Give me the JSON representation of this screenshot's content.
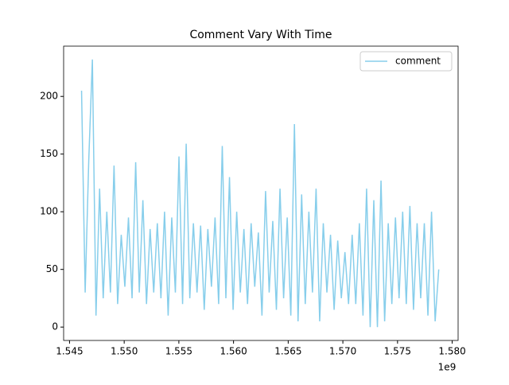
{
  "chart_data": {
    "type": "line",
    "title": "Comment Vary With Time",
    "x": [
      1546100000,
      1546430000,
      1546760000,
      1547090000,
      1547420000,
      1547750000,
      1548080000,
      1548410000,
      1548740000,
      1549070000,
      1549400000,
      1549730000,
      1550060000,
      1550390000,
      1550720000,
      1551050000,
      1551380000,
      1551710000,
      1552040000,
      1552370000,
      1552700000,
      1553030000,
      1553360000,
      1553690000,
      1554020000,
      1554350000,
      1554680000,
      1555010000,
      1555340000,
      1555670000,
      1556000000,
      1556330000,
      1556660000,
      1556990000,
      1557320000,
      1557650000,
      1557980000,
      1558310000,
      1558640000,
      1558970000,
      1559300000,
      1559630000,
      1559960000,
      1560290000,
      1560620000,
      1560950000,
      1561280000,
      1561610000,
      1561940000,
      1562270000,
      1562600000,
      1562930000,
      1563260000,
      1563590000,
      1563920000,
      1564250000,
      1564580000,
      1564910000,
      1565240000,
      1565570000,
      1565900000,
      1566230000,
      1566560000,
      1566890000,
      1567220000,
      1567550000,
      1567880000,
      1568210000,
      1568540000,
      1568870000,
      1569200000,
      1569530000,
      1569860000,
      1570190000,
      1570520000,
      1570850000,
      1571180000,
      1571510000,
      1571840000,
      1572170000,
      1572500000,
      1572830000,
      1573160000,
      1573490000,
      1573820000,
      1574150000,
      1574480000,
      1574810000,
      1575140000,
      1575470000,
      1575800000,
      1576130000,
      1576460000,
      1576790000,
      1577120000,
      1577450000,
      1577780000,
      1578110000,
      1578440000,
      1578770000
    ],
    "series": [
      {
        "name": "comment",
        "color": "#87ceeb",
        "values": [
          205,
          30,
          145,
          232,
          10,
          120,
          25,
          100,
          30,
          140,
          20,
          80,
          35,
          95,
          25,
          143,
          30,
          110,
          20,
          85,
          30,
          90,
          25,
          100,
          10,
          95,
          30,
          148,
          20,
          159,
          25,
          90,
          30,
          88,
          15,
          85,
          35,
          95,
          20,
          157,
          25,
          130,
          15,
          100,
          30,
          85,
          20,
          90,
          35,
          82,
          10,
          118,
          30,
          92,
          15,
          120,
          25,
          95,
          10,
          176,
          5,
          115,
          20,
          100,
          30,
          120,
          5,
          90,
          30,
          80,
          15,
          75,
          25,
          65,
          20,
          80,
          20,
          90,
          10,
          120,
          0,
          110,
          0,
          127,
          5,
          90,
          20,
          95,
          25,
          100,
          20,
          105,
          15,
          90,
          25,
          90,
          10,
          100,
          5,
          50
        ]
      }
    ],
    "xlim": [
      1544460000,
      1580540000
    ],
    "xticks": [
      {
        "value": 1545000000,
        "label": "1.545"
      },
      {
        "value": 1550000000,
        "label": "1.550"
      },
      {
        "value": 1555000000,
        "label": "1.555"
      },
      {
        "value": 1560000000,
        "label": "1.560"
      },
      {
        "value": 1565000000,
        "label": "1.565"
      },
      {
        "value": 1570000000,
        "label": "1.570"
      },
      {
        "value": 1575000000,
        "label": "1.575"
      },
      {
        "value": 1580000000,
        "label": "1.580"
      }
    ],
    "x_offset_label": "1e9",
    "ylim": [
      -11.6,
      243.6
    ],
    "yticks": [
      0,
      50,
      100,
      150,
      200
    ],
    "legend": "upper right"
  }
}
